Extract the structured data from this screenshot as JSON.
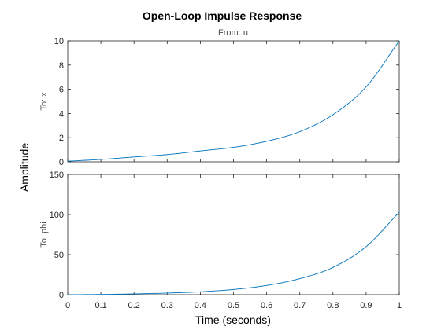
{
  "chart_data": {
    "type": "line",
    "title": "Open-Loop Impulse Response",
    "input_label": "From: u",
    "xlabel": "Time (seconds)",
    "ylabel": "Amplitude",
    "xlim": [
      0,
      1
    ],
    "x_ticks": [
      0,
      0.1,
      0.2,
      0.3,
      0.4,
      0.5,
      0.6,
      0.7,
      0.8,
      0.9,
      1
    ],
    "x_tick_labels": [
      "0",
      "0.1",
      "0.2",
      "0.3",
      "0.4",
      "0.5",
      "0.6",
      "0.7",
      "0.8",
      "0.9",
      "1"
    ],
    "grid": false,
    "line_color": "#0072bd",
    "panels": [
      {
        "label": "To: x",
        "ylim": [
          0,
          10
        ],
        "y_ticks": [
          0,
          2,
          4,
          6,
          8,
          10
        ],
        "y_tick_labels": [
          "0",
          "2",
          "4",
          "6",
          "8",
          "10"
        ],
        "x": [
          0,
          0.1,
          0.2,
          0.3,
          0.4,
          0.5,
          0.6,
          0.7,
          0.8,
          0.9,
          1.0
        ],
        "y": [
          0.05,
          0.2,
          0.4,
          0.6,
          0.9,
          1.2,
          1.7,
          2.5,
          3.9,
          6.2,
          10.0
        ]
      },
      {
        "label": "To: phi",
        "ylim": [
          0,
          150
        ],
        "y_ticks": [
          0,
          50,
          100,
          150
        ],
        "y_tick_labels": [
          "0",
          "50",
          "100",
          "150"
        ],
        "x": [
          0,
          0.1,
          0.2,
          0.3,
          0.4,
          0.5,
          0.6,
          0.7,
          0.8,
          0.9,
          1.0
        ],
        "y": [
          0,
          0.3,
          1.0,
          2.0,
          3.6,
          6.5,
          11.5,
          20.0,
          34.0,
          60.0,
          103.0
        ]
      }
    ]
  }
}
